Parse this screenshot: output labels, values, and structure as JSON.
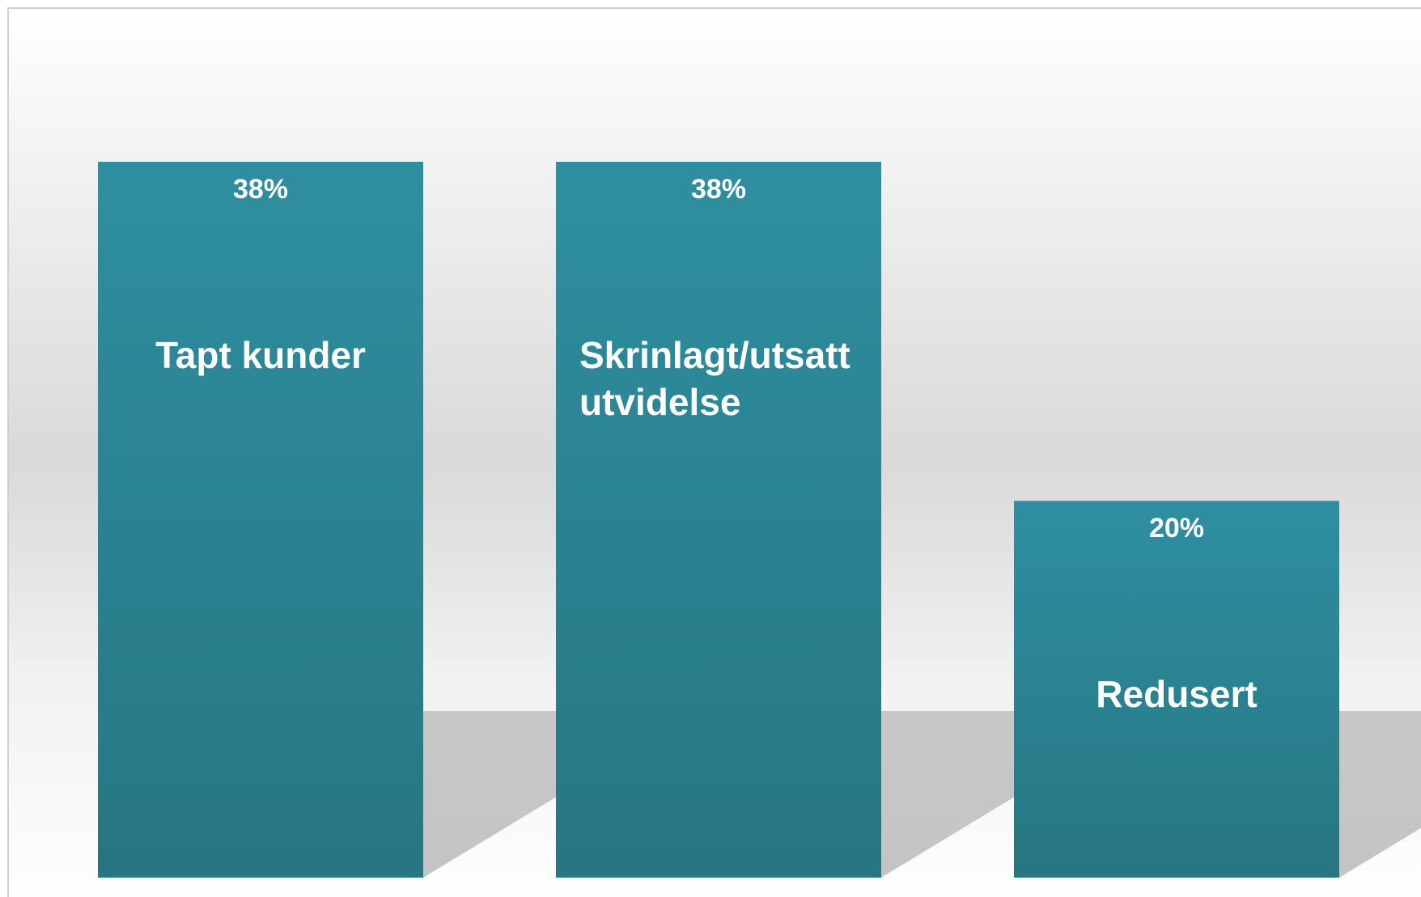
{
  "chart_data": {
    "type": "bar",
    "categories": [
      "Tapt kunder",
      "Skrinlagt/utsatt utvidelse",
      "Redusert"
    ],
    "values": [
      38,
      38,
      20
    ],
    "value_labels": [
      "38%",
      "38%",
      "20%"
    ],
    "color": "#2e8fa0",
    "ylim": [
      0,
      45
    ]
  }
}
